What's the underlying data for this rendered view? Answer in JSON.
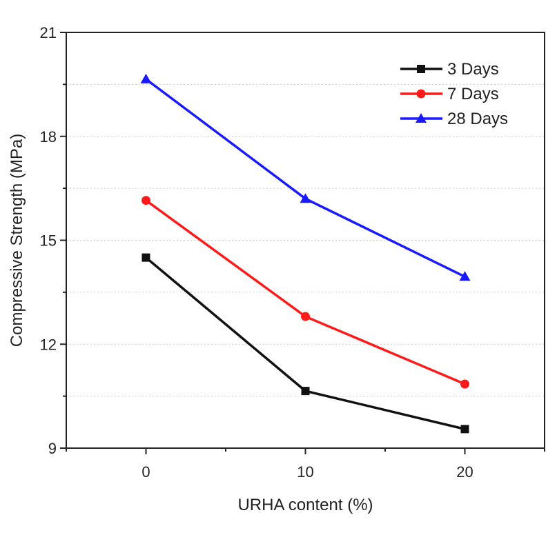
{
  "chart_data": {
    "type": "line",
    "xlabel": "URHA content (%)",
    "ylabel": "Compressive Strength (MPa)",
    "xlim": [
      -5,
      25
    ],
    "ylim": [
      9,
      21
    ],
    "x_ticks": [
      0,
      10,
      20
    ],
    "y_ticks": [
      9,
      12,
      15,
      18,
      21
    ],
    "x_tick_labels": [
      "0",
      "10",
      "20"
    ],
    "y_tick_labels": [
      "9",
      "12",
      "15",
      "18",
      "21"
    ],
    "grid": "horizontal dotted minor",
    "legend_position": "top-right",
    "series": [
      {
        "name": "3 Days",
        "color": "#111111",
        "marker": "square",
        "x": [
          0,
          10,
          20
        ],
        "values": [
          14.5,
          10.65,
          9.55
        ]
      },
      {
        "name": "7 Days",
        "color": "#ff1a1a",
        "marker": "circle",
        "x": [
          0,
          10,
          20
        ],
        "values": [
          16.15,
          12.8,
          10.85
        ]
      },
      {
        "name": "28 Days",
        "color": "#1a1aff",
        "marker": "triangle",
        "x": [
          0,
          10,
          20
        ],
        "values": [
          19.65,
          16.2,
          13.95
        ]
      }
    ]
  }
}
